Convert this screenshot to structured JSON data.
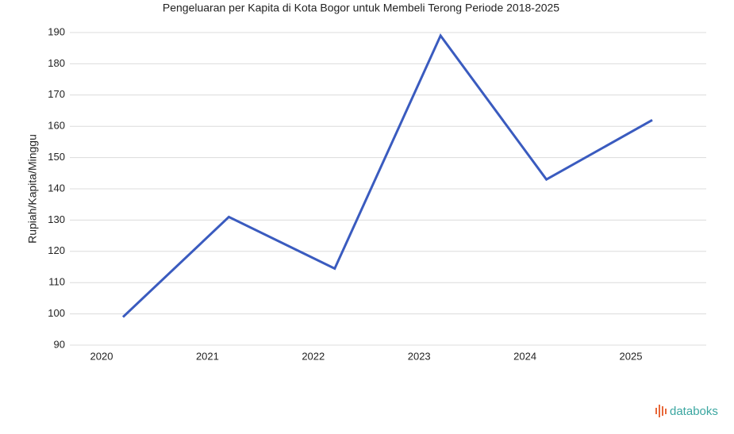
{
  "chart_data": {
    "type": "line",
    "title": "Pengeluaran per Kapita di Kota Bogor untuk Membeli Terong Periode 2018-2025",
    "y_label": "Rupiah/Kapita/Minggu",
    "categories": [
      "2020",
      "2021",
      "2022",
      "2023",
      "2024",
      "2025"
    ],
    "series": [
      {
        "name": "Pengeluaran per Kapita",
        "color": "#3a5bbf",
        "values": [
          99,
          131,
          114.5,
          189,
          143,
          162
        ]
      }
    ],
    "ylim": [
      90,
      190
    ],
    "yticks": [
      90,
      100,
      110,
      120,
      130,
      140,
      150,
      160,
      170,
      180,
      190
    ],
    "grid": true,
    "legend": false
  },
  "watermark": "databoks"
}
